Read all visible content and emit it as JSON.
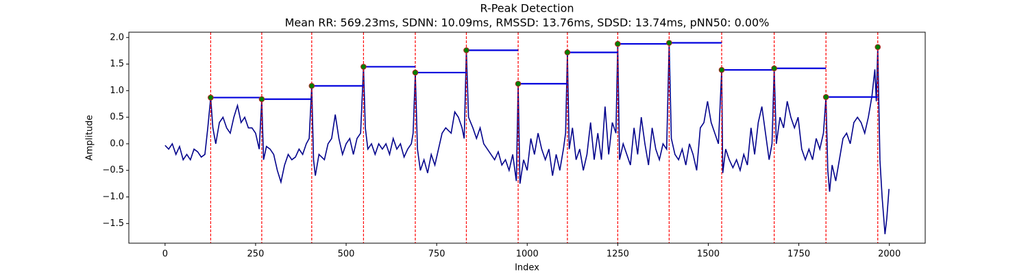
{
  "chart_data": {
    "type": "line",
    "title": "R-Peak Detection",
    "subtitle": "Mean RR: 569.23ms, SDNN: 10.09ms, RMSSD: 13.76ms, SDSD: 13.74ms, pNN50: 0.00%",
    "xlabel": "Index",
    "ylabel": "Amplitude",
    "xlim": [
      -100,
      2099
    ],
    "ylim": [
      -1.87,
      2.1
    ],
    "xticks": [
      0,
      250,
      500,
      750,
      1000,
      1250,
      1500,
      1750,
      2000
    ],
    "yticks": [
      {
        "value": -1.5,
        "label": "−1.5"
      },
      {
        "value": -1,
        "label": "−1.0"
      },
      {
        "value": -0.5,
        "label": "−0.5"
      },
      {
        "value": 0,
        "label": "0.0"
      },
      0.5,
      {
        "value": 1,
        "label": "1.0"
      },
      1.5,
      {
        "value": 2,
        "label": "2.0"
      }
    ],
    "color": "#00008b",
    "x": [
      0,
      10,
      20,
      30,
      40,
      50,
      60,
      70,
      80,
      90,
      100,
      110,
      118,
      126,
      132,
      140,
      150,
      160,
      170,
      180,
      190,
      200,
      210,
      220,
      230,
      240,
      250,
      260,
      267,
      272,
      280,
      290,
      300,
      310,
      320,
      330,
      340,
      350,
      360,
      370,
      380,
      390,
      398,
      405,
      410,
      415,
      425,
      440,
      450,
      460,
      470,
      480,
      490,
      500,
      510,
      520,
      530,
      540,
      548,
      553,
      560,
      570,
      580,
      590,
      600,
      610,
      620,
      630,
      640,
      650,
      660,
      670,
      680,
      685,
      691,
      697,
      705,
      715,
      725,
      735,
      745,
      755,
      765,
      775,
      790,
      800,
      810,
      820,
      826,
      832,
      838,
      850,
      860,
      870,
      880,
      890,
      900,
      910,
      920,
      930,
      940,
      950,
      960,
      970,
      975,
      980,
      990,
      1000,
      1010,
      1020,
      1030,
      1040,
      1050,
      1060,
      1070,
      1080,
      1090,
      1100,
      1106,
      1111,
      1116,
      1125,
      1135,
      1145,
      1155,
      1165,
      1175,
      1185,
      1195,
      1205,
      1215,
      1225,
      1235,
      1245,
      1250,
      1255,
      1265,
      1275,
      1285,
      1295,
      1305,
      1315,
      1325,
      1335,
      1345,
      1355,
      1365,
      1375,
      1385,
      1392,
      1398,
      1408,
      1418,
      1428,
      1438,
      1448,
      1458,
      1468,
      1478,
      1488,
      1498,
      1508,
      1518,
      1528,
      1537,
      1540,
      1548,
      1558,
      1568,
      1578,
      1588,
      1598,
      1608,
      1618,
      1628,
      1638,
      1648,
      1658,
      1668,
      1676,
      1682,
      1688,
      1698,
      1708,
      1718,
      1728,
      1738,
      1748,
      1758,
      1768,
      1778,
      1788,
      1798,
      1808,
      1818,
      1825,
      1830,
      1835,
      1842,
      1852,
      1862,
      1872,
      1882,
      1892,
      1902,
      1912,
      1922,
      1932,
      1942,
      1952,
      1960,
      1964,
      1968,
      1974,
      1980,
      1988,
      1993,
      1999
    ],
    "values": [
      -0.03,
      -0.1,
      0.0,
      -0.2,
      -0.05,
      -0.3,
      -0.2,
      -0.3,
      -0.1,
      -0.15,
      -0.25,
      -0.2,
      0.3,
      0.87,
      0.3,
      0.0,
      0.4,
      0.5,
      0.3,
      0.2,
      0.5,
      0.72,
      0.4,
      0.5,
      0.3,
      0.3,
      0.2,
      -0.1,
      0.84,
      -0.3,
      -0.05,
      -0.1,
      -0.2,
      -0.5,
      -0.72,
      -0.4,
      -0.2,
      -0.3,
      -0.25,
      -0.1,
      -0.2,
      0.0,
      0.1,
      1.09,
      -0.3,
      -0.6,
      -0.2,
      -0.3,
      0.0,
      0.1,
      0.55,
      0.1,
      -0.2,
      0.0,
      0.1,
      -0.2,
      0.1,
      0.2,
      1.45,
      0.3,
      -0.1,
      0.0,
      -0.2,
      0.0,
      -0.1,
      0.0,
      -0.2,
      0.1,
      -0.1,
      0.0,
      -0.25,
      -0.1,
      0.0,
      0.2,
      1.34,
      -0.1,
      -0.5,
      -0.3,
      -0.55,
      -0.2,
      -0.4,
      -0.1,
      0.2,
      0.3,
      0.2,
      0.6,
      0.5,
      0.3,
      0.1,
      1.76,
      0.5,
      0.3,
      0.1,
      0.3,
      0.0,
      -0.1,
      -0.2,
      -0.3,
      -0.15,
      -0.4,
      -0.3,
      -0.5,
      -0.2,
      -0.7,
      1.13,
      -0.75,
      -0.3,
      -0.5,
      0.1,
      -0.2,
      0.2,
      -0.1,
      -0.3,
      -0.1,
      -0.6,
      -0.2,
      -0.5,
      -0.1,
      0.2,
      1.72,
      -0.1,
      0.3,
      -0.3,
      -0.1,
      -0.5,
      -0.2,
      0.4,
      -0.3,
      0.2,
      -0.3,
      0.7,
      -0.2,
      0.4,
      0.2,
      1.88,
      -0.3,
      0.0,
      -0.2,
      -0.4,
      0.3,
      -0.2,
      0.5,
      0.0,
      -0.4,
      0.3,
      -0.1,
      -0.3,
      0.0,
      -0.1,
      1.9,
      0.1,
      -0.2,
      -0.3,
      -0.1,
      -0.4,
      0.0,
      -0.2,
      -0.5,
      0.3,
      0.4,
      0.8,
      0.4,
      0.2,
      0.0,
      1.39,
      -0.55,
      -0.1,
      -0.3,
      -0.45,
      -0.3,
      -0.5,
      -0.2,
      -0.4,
      0.3,
      -0.2,
      0.4,
      0.7,
      0.2,
      -0.3,
      0.0,
      1.42,
      0.0,
      0.5,
      0.3,
      0.8,
      0.5,
      0.3,
      0.5,
      -0.1,
      -0.3,
      -0.1,
      -0.3,
      0.1,
      -0.1,
      0.2,
      0.88,
      -0.5,
      -0.9,
      -0.4,
      -0.7,
      -0.3,
      0.1,
      0.2,
      0.0,
      0.4,
      0.5,
      0.4,
      0.2,
      0.5,
      0.9,
      1.4,
      0.8,
      1.82,
      -0.3,
      -1.0,
      -1.7,
      -1.4,
      -0.85
    ],
    "peaks": {
      "x": [
        126,
        267,
        405,
        548,
        691,
        832,
        975,
        1111,
        1250,
        1392,
        1537,
        1682,
        1825,
        1968
      ],
      "values": [
        0.87,
        0.84,
        1.09,
        1.45,
        1.34,
        1.76,
        1.13,
        1.72,
        1.88,
        1.9,
        1.39,
        1.42,
        0.88,
        1.82
      ],
      "color": "#008000",
      "edge_color": "#b22222",
      "vline_color": "#ff0000",
      "hline_color": "#0000dd"
    }
  }
}
